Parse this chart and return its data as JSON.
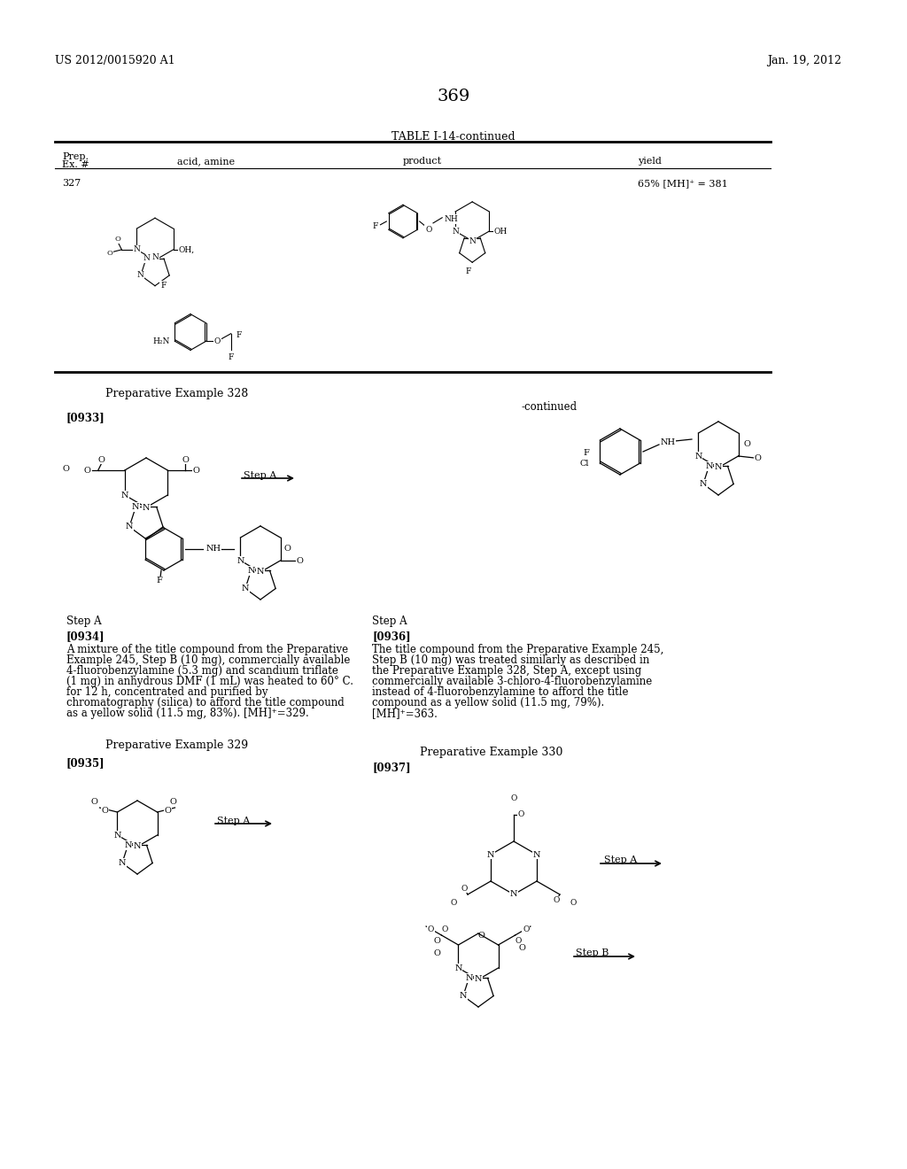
{
  "page_number": "369",
  "patent_number": "US 2012/0015920 A1",
  "patent_date": "Jan. 19, 2012",
  "table_title": "TABLE I-14-continued",
  "table_headers": [
    "Prep.\nEx. #",
    "acid, amine",
    "product",
    "yield"
  ],
  "table_row_number": "327",
  "table_yield": "65% [MH]⁺ = 381",
  "prep_example_328": "Preparative Example 328",
  "continued_label": "-continued",
  "paragraph_933": "[0933]",
  "step_a_label_1": "Step A",
  "step_a_label_2": "Step A",
  "paragraph_934_title": "[0934]",
  "paragraph_934_text": "A mixture of the title compound from the Preparative Example 245, Step B (10 mg), commercially available 4-fluorobenzylamine (5.3 mg) and scandium triflate (1 mg) in anhydrous DMF (1 mL) was heated to 60° C. for 12 h, concentrated and purified by chromatography (silica) to afford the title compound as a yellow solid (11.5 mg, 83%). [MH]⁺=329.",
  "prep_example_329": "Preparative Example 329",
  "paragraph_935": "[0935]",
  "step_a_label_3": "Step A",
  "paragraph_936_title": "[0936]",
  "paragraph_936_text": "The title compound from the Preparative Example 245, Step B (10 mg) was treated similarly as described in the Preparative Example 328, Step A, except using commercially available 3-chloro-4-fluorobenzylamine instead of 4-fluorobenzylamine to afford the title compound as a yellow solid (11.5 mg, 79%). [MH]⁺=363.",
  "prep_example_330": "Preparative Example 330",
  "paragraph_937": "[0937]",
  "step_b_label": "Step B",
  "background_color": "#ffffff",
  "text_color": "#000000",
  "font_size_body": 8.5,
  "font_size_small": 7.5,
  "font_size_header": 9,
  "font_size_page_num": 14
}
